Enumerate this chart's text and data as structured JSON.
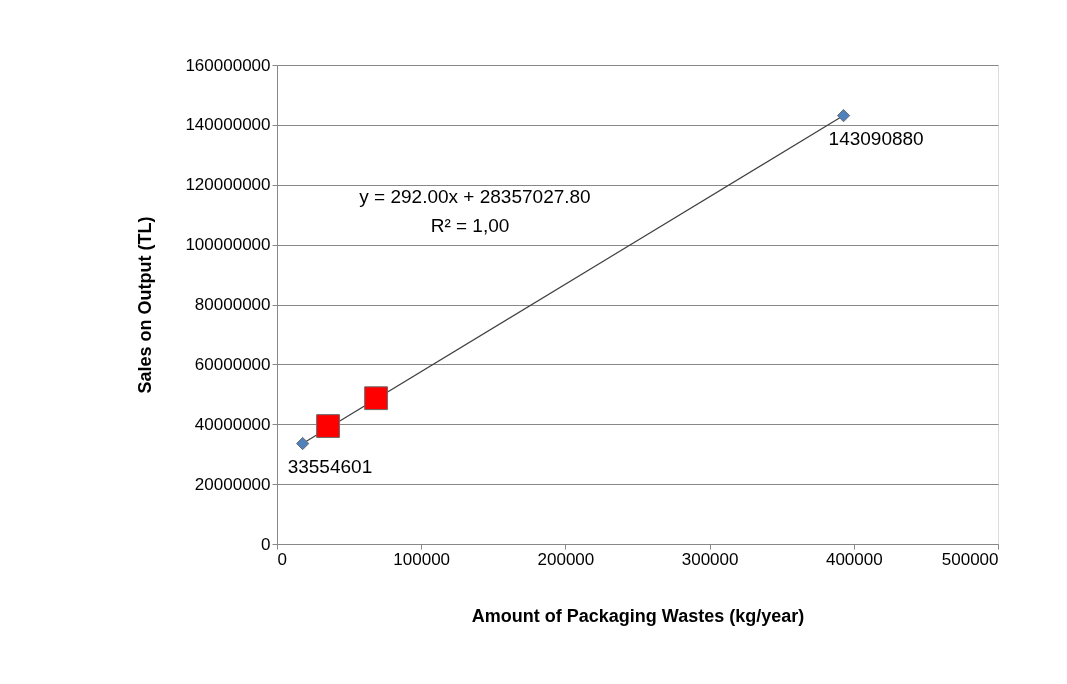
{
  "chart_data": {
    "type": "scatter",
    "xlabel": "Amount of Packaging Wastes (kg/year)",
    "ylabel": "Sales on Output  (TL)",
    "xlim": [
      0,
      500000
    ],
    "xticks": [
      0,
      100000,
      200000,
      300000,
      400000,
      500000
    ],
    "ylim": [
      0,
      160000000
    ],
    "yticks": [
      0,
      20000000,
      40000000,
      60000000,
      80000000,
      100000000,
      120000000,
      140000000,
      160000000
    ],
    "grid": "y",
    "annotations": [
      "y = 292.00x + 28357027.80",
      "R² = 1,00"
    ],
    "series": [
      {
        "type": "line",
        "color": "#404040",
        "x": [
          17800,
          392900
        ],
        "values": [
          33600000,
          143100000
        ],
        "line_style": "solid",
        "marker": "none"
      },
      {
        "color": "#4f81bd",
        "marker": "diamond",
        "x": [
          17800,
          392900
        ],
        "values": [
          33554601,
          143090880
        ],
        "value_labels": [
          "33554601",
          "143090880"
        ]
      },
      {
        "color": "#ff0000",
        "marker": "square",
        "x": [
          35400,
          68700
        ],
        "values": [
          39400000,
          48700000
        ]
      }
    ]
  }
}
